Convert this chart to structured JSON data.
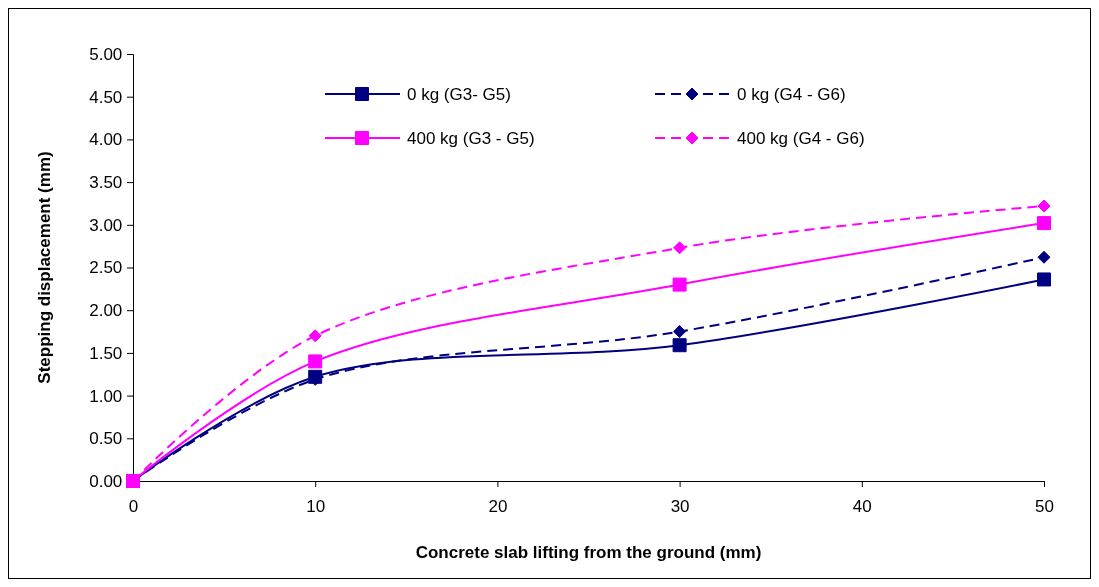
{
  "chart_data": {
    "type": "line",
    "xlabel": "Concrete slab lifting from the ground (mm)",
    "ylabel": "Stepping displacement (mm)",
    "x": [
      0,
      10,
      30,
      50
    ],
    "series": [
      {
        "name": "0 kg (G3- G5)",
        "color": "#000080",
        "values": [
          0,
          1.22,
          1.59,
          2.36
        ],
        "marker": "square",
        "line_style": "solid"
      },
      {
        "name": "0 kg (G4 - G6)",
        "color": "#000080",
        "values": [
          0,
          1.19,
          1.75,
          2.62
        ],
        "marker": "diamond",
        "line_style": "dashed"
      },
      {
        "name": "400 kg (G3 - G5)",
        "color": "#ff00ff",
        "values": [
          0,
          1.4,
          2.3,
          3.02
        ],
        "marker": "square",
        "line_style": "solid"
      },
      {
        "name": "400 kg (G4 - G6)",
        "color": "#ff00ff",
        "values": [
          0,
          1.7,
          2.73,
          3.22
        ],
        "marker": "diamond",
        "line_style": "dashed"
      }
    ],
    "xlim": [
      0,
      50
    ],
    "xticks": [
      0,
      10,
      20,
      30,
      40,
      50
    ],
    "ylim": [
      0,
      5
    ],
    "yticks": [
      {
        "value": 0,
        "label": "0.00"
      },
      {
        "value": 0.5,
        "label": "0.50"
      },
      {
        "value": 1,
        "label": "1.00"
      },
      {
        "value": 1.5,
        "label": "1.50"
      },
      {
        "value": 2,
        "label": "2.00"
      },
      {
        "value": 2.5,
        "label": "2.50"
      },
      {
        "value": 3,
        "label": "3.00"
      },
      {
        "value": 3.5,
        "label": "3.50"
      },
      {
        "value": 4,
        "label": "4.00"
      },
      {
        "value": 4.5,
        "label": "4.50"
      },
      {
        "value": 5,
        "label": "5.00"
      }
    ],
    "grid": false,
    "legend": "top"
  }
}
